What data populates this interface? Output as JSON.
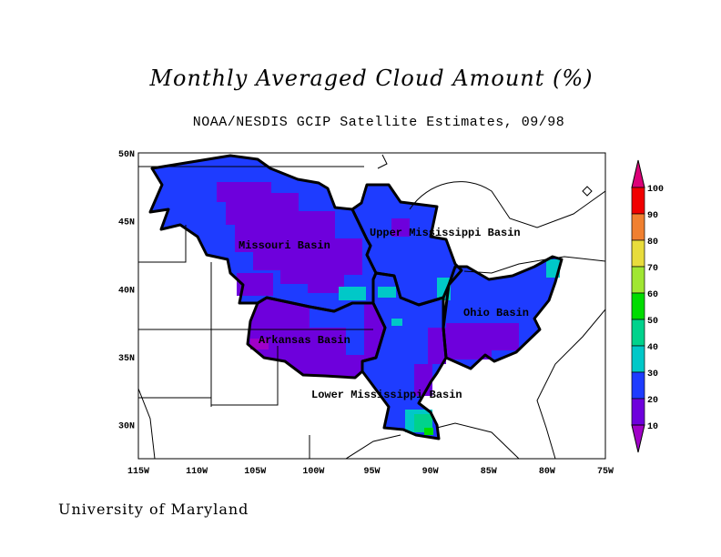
{
  "title": "Monthly Averaged Cloud Amount (%)",
  "subtitle": "NOAA/NESDIS GCIP Satellite Estimates, 09/98",
  "footer": "University of Maryland",
  "map": {
    "lon_ticks": [
      "115W",
      "110W",
      "105W",
      "100W",
      "95W",
      "90W",
      "85W",
      "80W",
      "75W"
    ],
    "lat_ticks": [
      "50N",
      "45N",
      "40N",
      "35N",
      "30N"
    ],
    "lon_range": [
      -115,
      -75
    ],
    "lat_range": [
      27.5,
      50
    ],
    "basins": [
      "Missouri Basin",
      "Upper Mississippi Basin",
      "Ohio Basin",
      "Arkansas Basin",
      "Lower Mississippi Basin"
    ]
  },
  "colorbar": {
    "labels": [
      "100",
      "90",
      "80",
      "70",
      "60",
      "50",
      "40",
      "30",
      "20",
      "10"
    ],
    "colors": [
      "#f00000",
      "#f08030",
      "#e8dc3c",
      "#a0e632",
      "#00dc00",
      "#00d28c",
      "#00c8c8",
      "#1e3cff",
      "#6e00dc"
    ],
    "over_color": "#dc0078",
    "under_color": "#a000c8"
  }
}
